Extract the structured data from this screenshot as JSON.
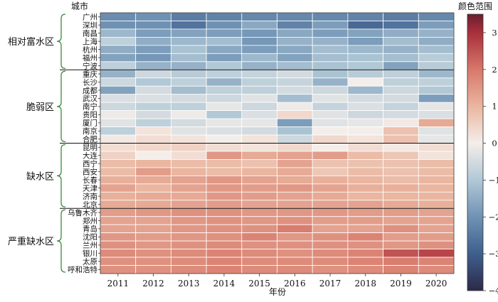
{
  "chart_data": {
    "type": "heatmap",
    "title": "",
    "xlabel": "年份",
    "ylabel": "城市",
    "colorbar_label": "颜色范围",
    "years": [
      "2011",
      "2012",
      "2013",
      "2014",
      "2015",
      "2016",
      "2017",
      "2018",
      "2019",
      "2020"
    ],
    "cities": [
      "广州",
      "深圳",
      "南昌",
      "上海",
      "杭州",
      "福州",
      "宁波",
      "重庆",
      "长沙",
      "成都",
      "武汉",
      "南宁",
      "贵阳",
      "厦门",
      "南京",
      "合肥",
      "昆明",
      "大连",
      "西宁",
      "西安",
      "长春",
      "天津",
      "济南",
      "北京",
      "乌鲁木齐",
      "郑州",
      "青岛",
      "沈阳",
      "兰州",
      "银川",
      "太原",
      "呼和浩特"
    ],
    "groups": [
      {
        "name": "相对富水区",
        "start": 0,
        "end": 6
      },
      {
        "name": "脆弱区",
        "start": 7,
        "end": 15
      },
      {
        "name": "缺水区",
        "start": 16,
        "end": 23
      },
      {
        "name": "严重缺水区",
        "start": 24,
        "end": 31
      }
    ],
    "colorbar": {
      "min": -4,
      "max": 3.5,
      "ticks": [
        -4,
        -3,
        -2,
        -1,
        0,
        1,
        2,
        3
      ],
      "stops": [
        {
          "v": -4,
          "c": "#2c2948"
        },
        {
          "v": -3,
          "c": "#3f5f8d"
        },
        {
          "v": -2,
          "c": "#6f92b4"
        },
        {
          "v": -1,
          "c": "#b1c8d6"
        },
        {
          "v": 0,
          "c": "#f4eeea"
        },
        {
          "v": 1,
          "c": "#eab6a0"
        },
        {
          "v": 2,
          "c": "#d7786a"
        },
        {
          "v": 3,
          "c": "#a92f3c"
        },
        {
          "v": 3.5,
          "c": "#6a1f2e"
        }
      ]
    },
    "values": [
      [
        -2.1,
        -2.0,
        -2.4,
        -2.3,
        -2.2,
        -2.2,
        -2.2,
        -2.3,
        -2.4,
        -2.2
      ],
      [
        -2.0,
        -2.0,
        -2.6,
        -2.0,
        -1.6,
        -2.3,
        -1.8,
        -2.8,
        -2.6,
        -1.8
      ],
      [
        -1.3,
        -1.8,
        -1.7,
        -1.8,
        -1.9,
        -1.6,
        -1.8,
        -1.7,
        -1.5,
        -1.4
      ],
      [
        -0.8,
        -1.5,
        -1.3,
        -1.2,
        -1.9,
        -1.4,
        -1.4,
        -1.8,
        -1.2,
        -1.5
      ],
      [
        -1.5,
        -1.8,
        -1.1,
        -1.6,
        -1.8,
        -1.6,
        -1.2,
        -1.3,
        -1.4,
        -1.2
      ],
      [
        -1.7,
        -1.9,
        -1.2,
        -1.8,
        -1.3,
        -1.7,
        -1.2,
        -1.1,
        -1.2,
        -0.9
      ],
      [
        -0.8,
        -1.4,
        -1.4,
        -1.0,
        -1.4,
        -1.2,
        -1.1,
        -1.0,
        -1.7,
        -0.9
      ],
      [
        -1.4,
        -0.6,
        -0.9,
        -0.8,
        -0.7,
        -0.5,
        -1.1,
        -0.9,
        -0.8,
        -1.3
      ],
      [
        -0.6,
        -1.0,
        -0.8,
        -1.4,
        -0.8,
        -0.7,
        -1.4,
        0.0,
        -0.8,
        -0.8
      ],
      [
        -1.7,
        -0.5,
        -1.2,
        -0.8,
        -0.8,
        -0.5,
        -0.6,
        -1.3,
        -0.6,
        -1.0
      ],
      [
        -0.4,
        -0.4,
        -0.5,
        -0.6,
        -0.3,
        -1.2,
        -0.3,
        -0.5,
        -0.5,
        -1.8
      ],
      [
        -0.6,
        -0.8,
        -0.8,
        -0.2,
        -0.6,
        -0.1,
        -0.7,
        -0.4,
        -0.7,
        -0.2
      ],
      [
        -0.1,
        -0.5,
        -0.1,
        -1.0,
        -0.4,
        0.4,
        -0.3,
        -0.6,
        -0.5,
        -0.4
      ],
      [
        -0.3,
        -0.8,
        -0.5,
        -0.2,
        -0.2,
        -1.8,
        -0.3,
        -0.2,
        0.1,
        1.2
      ],
      [
        -0.8,
        0.2,
        -0.3,
        -0.4,
        -0.5,
        -1.1,
        0.0,
        0.0,
        0.8,
        -0.3
      ],
      [
        0.1,
        0.3,
        0.2,
        0.0,
        0.2,
        -0.6,
        0.4,
        0.2,
        0.8,
        -0.2
      ],
      [
        0.3,
        0.4,
        0.5,
        0.3,
        0.2,
        0.4,
        0.0,
        0.3,
        0.1,
        0.3
      ],
      [
        0.5,
        0.0,
        0.3,
        1.5,
        1.2,
        1.3,
        1.4,
        0.9,
        0.7,
        0.2
      ],
      [
        0.9,
        1.0,
        0.9,
        0.9,
        0.8,
        1.3,
        0.8,
        0.8,
        0.8,
        0.9
      ],
      [
        0.9,
        1.4,
        1.0,
        0.9,
        1.0,
        1.2,
        0.7,
        0.9,
        0.8,
        0.9
      ],
      [
        1.1,
        1.2,
        1.3,
        1.5,
        1.3,
        1.2,
        1.1,
        1.0,
        0.9,
        1.0
      ],
      [
        1.3,
        1.0,
        1.3,
        1.5,
        1.4,
        1.5,
        1.3,
        1.1,
        1.1,
        1.0
      ],
      [
        1.1,
        1.2,
        1.2,
        1.5,
        1.4,
        1.3,
        1.2,
        1.0,
        1.0,
        1.0
      ],
      [
        1.2,
        1.2,
        1.3,
        1.4,
        1.3,
        1.3,
        1.3,
        1.3,
        1.2,
        1.1
      ],
      [
        1.4,
        1.5,
        1.6,
        1.6,
        1.5,
        1.5,
        1.5,
        1.4,
        1.4,
        1.3
      ],
      [
        1.3,
        1.3,
        1.5,
        1.6,
        1.5,
        1.6,
        1.4,
        1.4,
        1.3,
        1.3
      ],
      [
        1.3,
        1.3,
        1.5,
        1.6,
        1.6,
        1.9,
        1.3,
        1.3,
        1.6,
        1.3
      ],
      [
        1.5,
        1.4,
        1.5,
        1.6,
        1.8,
        1.5,
        1.6,
        1.8,
        1.4,
        1.4
      ],
      [
        1.6,
        1.5,
        1.6,
        1.7,
        1.6,
        1.6,
        1.6,
        1.6,
        1.5,
        1.6
      ],
      [
        1.7,
        1.6,
        1.7,
        1.8,
        1.7,
        1.6,
        1.7,
        1.8,
        2.5,
        2.7
      ],
      [
        1.6,
        1.6,
        1.7,
        1.8,
        1.7,
        1.7,
        1.7,
        1.8,
        1.9,
        1.8
      ],
      [
        1.6,
        1.6,
        1.7,
        1.8,
        1.7,
        1.7,
        1.6,
        1.7,
        1.8,
        1.7
      ]
    ]
  }
}
